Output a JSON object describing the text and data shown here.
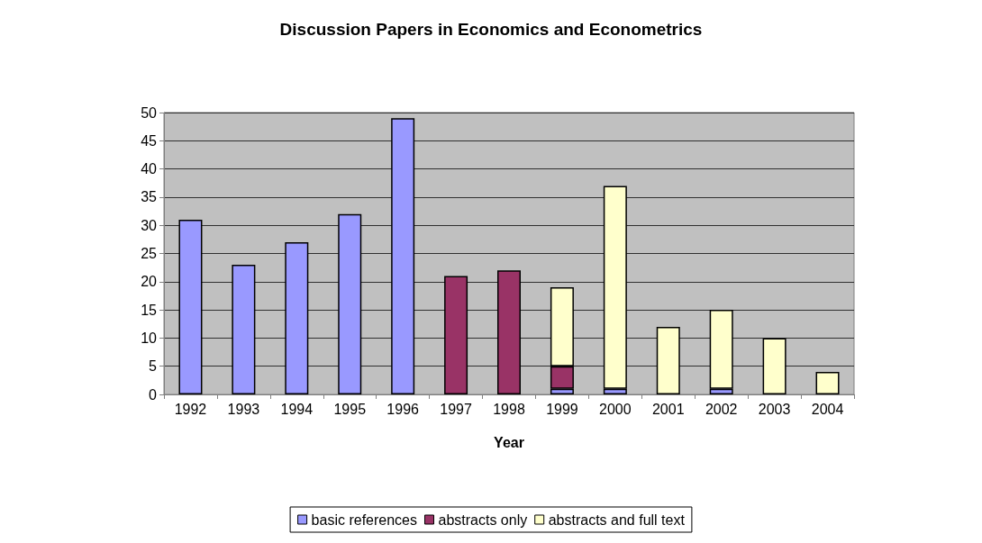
{
  "chart_data": {
    "type": "bar",
    "title": "Discussion Papers in Economics and Econometrics",
    "xlabel": "Year",
    "categories": [
      "1992",
      "1993",
      "1994",
      "1995",
      "1996",
      "1997",
      "1998",
      "1999",
      "2000",
      "2001",
      "2002",
      "2003",
      "2004"
    ],
    "series": [
      {
        "name": "basic references",
        "color": "#9999ff",
        "values": [
          31,
          23,
          27,
          32,
          49,
          null,
          null,
          1,
          1,
          null,
          1,
          null,
          null
        ]
      },
      {
        "name": "abstracts only",
        "color": "#993366",
        "values": [
          null,
          null,
          null,
          null,
          null,
          21,
          22,
          4,
          null,
          null,
          null,
          null,
          null
        ]
      },
      {
        "name": "abstracts and full text",
        "color": "#ffffcc",
        "values": [
          null,
          null,
          null,
          null,
          null,
          null,
          null,
          14,
          36,
          12,
          14,
          10,
          4
        ]
      }
    ],
    "stacked": true,
    "ylim": [
      0,
      50
    ],
    "yticks": [
      0,
      5,
      10,
      15,
      20,
      25,
      30,
      35,
      40,
      45,
      50
    ],
    "grid": "y",
    "legend": "bottom"
  }
}
